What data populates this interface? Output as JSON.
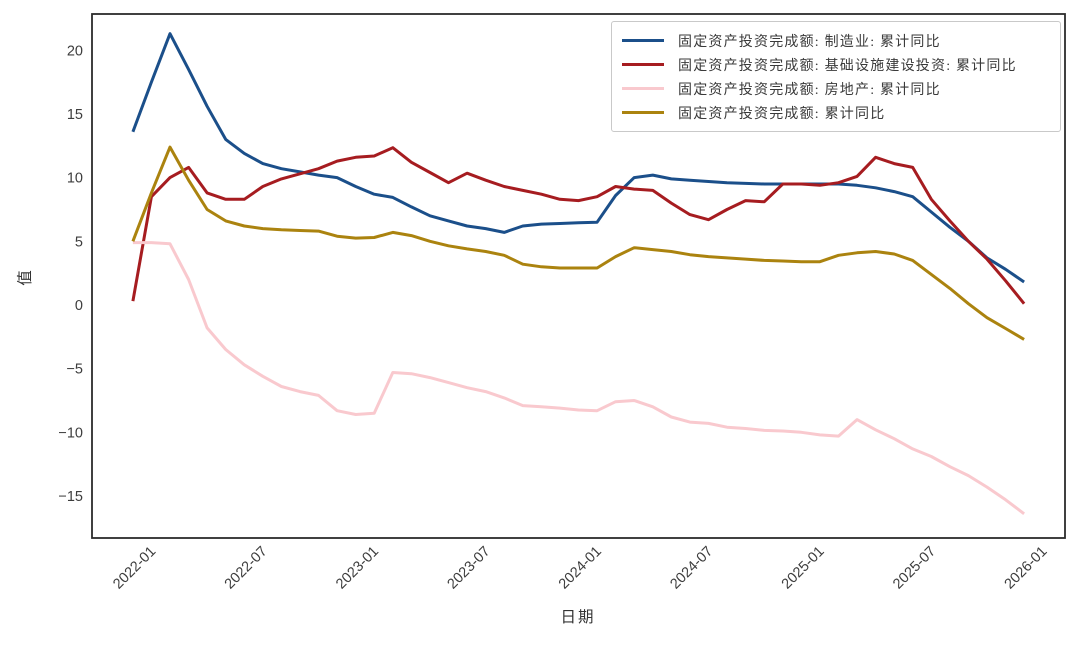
{
  "figure": {
    "background": "#ffffff",
    "plot_border_color": "#2b2b2b"
  },
  "axes": {
    "y_label": "值",
    "x_label": "日期",
    "y_tick_labels": [
      "20",
      "15",
      "10",
      "5",
      "0",
      "−5",
      "−10",
      "−15"
    ],
    "y_tick_values": [
      20,
      15,
      10,
      5,
      0,
      -5,
      -10,
      -15
    ],
    "x_tick_labels": [
      "2022-01",
      "2022-07",
      "2023-01",
      "2023-07",
      "2024-01",
      "2024-07",
      "2025-01",
      "2025-07",
      "2026-01"
    ]
  },
  "chart_data": {
    "type": "line",
    "title": "",
    "xlabel": "日期",
    "ylabel": "值",
    "grid": false,
    "legend_position": "upper right",
    "x_start_month": "2021-12",
    "x_monthly_points": 49,
    "x_tick_labels": [
      "2022-01",
      "2022-07",
      "2023-01",
      "2023-07",
      "2024-01",
      "2024-07",
      "2025-01",
      "2025-07",
      "2026-01"
    ],
    "x_tick_month_indices": [
      1,
      7,
      13,
      19,
      25,
      31,
      37,
      43,
      49
    ],
    "xlim_months": [
      -2.2,
      50.2
    ],
    "ylim": [
      -18.3,
      22.85
    ],
    "series": [
      {
        "name": "固定资产投资完成额: 制造业: 累计同比",
        "color": "#1b4f8a",
        "values": [
          13.6,
          17.5,
          21.3,
          18.5,
          15.6,
          13.0,
          11.9,
          11.1,
          10.7,
          10.45,
          10.2,
          10.0,
          9.3,
          8.7,
          8.45,
          7.7,
          7.0,
          6.6,
          6.2,
          6.0,
          5.7,
          6.2,
          6.35,
          6.4,
          6.45,
          6.5,
          8.6,
          10.0,
          10.2,
          9.9,
          9.8,
          9.7,
          9.6,
          9.55,
          9.5,
          9.5,
          9.5,
          9.5,
          9.5,
          9.4,
          9.2,
          8.9,
          8.5,
          7.3,
          6.1,
          5.0,
          3.7,
          2.8,
          1.8
        ]
      },
      {
        "name": "固定资产投资完成额: 基础设施建设投资: 累计同比",
        "color": "#a61c20",
        "values": [
          0.3,
          8.5,
          10.0,
          10.8,
          8.8,
          8.3,
          8.3,
          9.3,
          9.9,
          10.3,
          10.7,
          11.3,
          11.6,
          11.7,
          12.35,
          11.2,
          10.4,
          9.6,
          10.35,
          9.8,
          9.3,
          9.0,
          8.7,
          8.3,
          8.2,
          8.5,
          9.3,
          9.1,
          9.0,
          8.0,
          7.1,
          6.7,
          7.5,
          8.2,
          8.1,
          9.5,
          9.5,
          9.4,
          9.6,
          10.1,
          11.6,
          11.1,
          10.8,
          8.3,
          6.6,
          5.0,
          3.6,
          1.9,
          0.1
        ]
      },
      {
        "name": "固定资产投资完成额: 房地产: 累计同比",
        "color": "#f9c9ce",
        "values": [
          4.9,
          4.9,
          4.8,
          2.0,
          -1.8,
          -3.5,
          -4.7,
          -5.6,
          -6.4,
          -6.8,
          -7.1,
          -8.3,
          -8.6,
          -8.5,
          -5.3,
          -5.4,
          -5.7,
          -6.1,
          -6.5,
          -6.8,
          -7.3,
          -7.9,
          -8.0,
          -8.1,
          -8.25,
          -8.3,
          -7.6,
          -7.5,
          -8.0,
          -8.8,
          -9.2,
          -9.3,
          -9.6,
          -9.7,
          -9.85,
          -9.9,
          -10.0,
          -10.2,
          -10.3,
          -9.0,
          -9.8,
          -10.5,
          -11.3,
          -11.9,
          -12.7,
          -13.4,
          -14.3,
          -15.3,
          -16.4
        ]
      },
      {
        "name": "固定资产投资完成额: 累计同比",
        "color": "#ab830f",
        "values": [
          5.0,
          8.8,
          12.4,
          9.8,
          7.5,
          6.6,
          6.2,
          6.0,
          5.9,
          5.85,
          5.8,
          5.4,
          5.25,
          5.3,
          5.7,
          5.45,
          5.0,
          4.65,
          4.4,
          4.2,
          3.9,
          3.2,
          3.0,
          2.9,
          2.9,
          2.9,
          3.8,
          4.5,
          4.35,
          4.2,
          3.95,
          3.8,
          3.7,
          3.6,
          3.5,
          3.45,
          3.4,
          3.4,
          3.9,
          4.1,
          4.2,
          4.0,
          3.5,
          2.4,
          1.3,
          0.1,
          -1.0,
          -1.85,
          -2.7
        ]
      }
    ]
  }
}
